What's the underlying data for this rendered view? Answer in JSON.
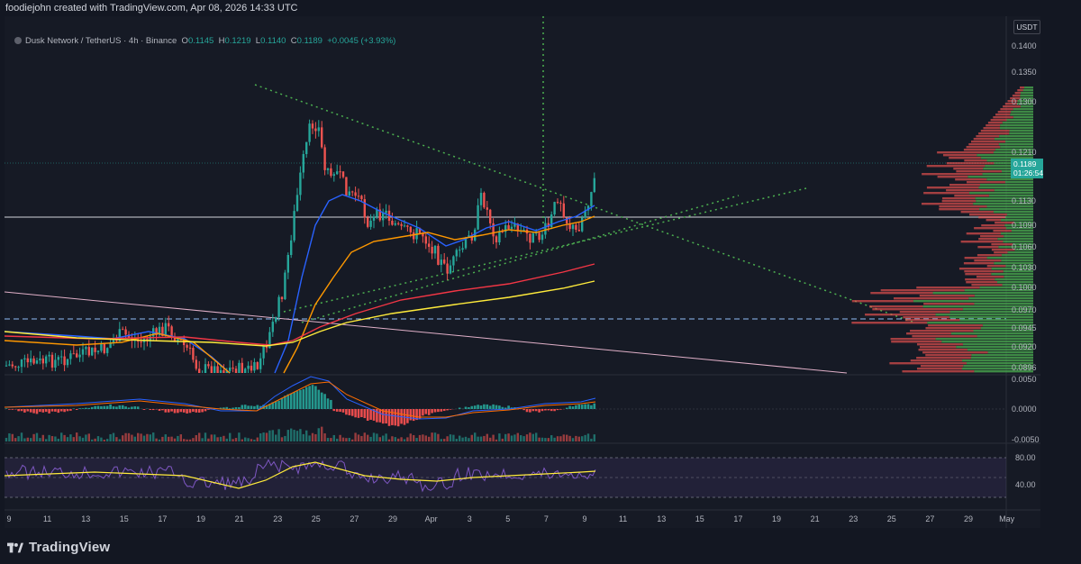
{
  "header": {
    "credit": "foodiejohn created with TradingView.com, Apr 08, 2026 14:33 UTC"
  },
  "legend": {
    "symbol": "Dusk Network / TetherUS · 4h · Binance",
    "open_label": "O",
    "open": "0.1145",
    "high_label": "H",
    "high": "0.1219",
    "low_label": "L",
    "low": "0.1140",
    "close_label": "C",
    "close": "0.1189",
    "change": "+0.0045 (+3.93%)"
  },
  "currency": "USDT",
  "current_price": {
    "price": "0.1189",
    "countdown": "01:26:54"
  },
  "colors": {
    "bull": "#26a69a",
    "bear": "#ef5350",
    "ma_blue": "#2962ff",
    "ma_orange": "#ff9800",
    "ma_red": "#f23645",
    "ma_yellow": "#ffeb3b",
    "trend_green": "#4caf50",
    "rsi": "#7e57c2"
  },
  "brand": "TradingView",
  "chart_data": {
    "type": "candlestick",
    "price_axis_ticks": [
      "0.1400",
      "0.1350",
      "0.1300",
      "0.1210",
      "0.1130",
      "0.1090",
      "0.1060",
      "0.1030",
      "0.1000",
      "0.0970",
      "0.0945",
      "0.0920",
      "0.0896"
    ],
    "macd_axis_ticks": [
      "0.0050",
      "0.0000",
      "-0.0050"
    ],
    "rsi_axis_ticks": [
      "80.00",
      "40.00"
    ],
    "time_axis_ticks": [
      "9",
      "11",
      "13",
      "15",
      "17",
      "19",
      "21",
      "23",
      "25",
      "27",
      "29",
      "Apr",
      "3",
      "5",
      "7",
      "9",
      "11",
      "13",
      "15",
      "17",
      "19",
      "21",
      "23",
      "25",
      "27",
      "29",
      "May"
    ],
    "horizontal_levels": [
      0.1101,
      0.0958
    ],
    "moving_averages": [
      "blue",
      "orange",
      "red",
      "yellow"
    ],
    "indicators": [
      "MACD",
      "RSI",
      "Volume Profile"
    ]
  }
}
